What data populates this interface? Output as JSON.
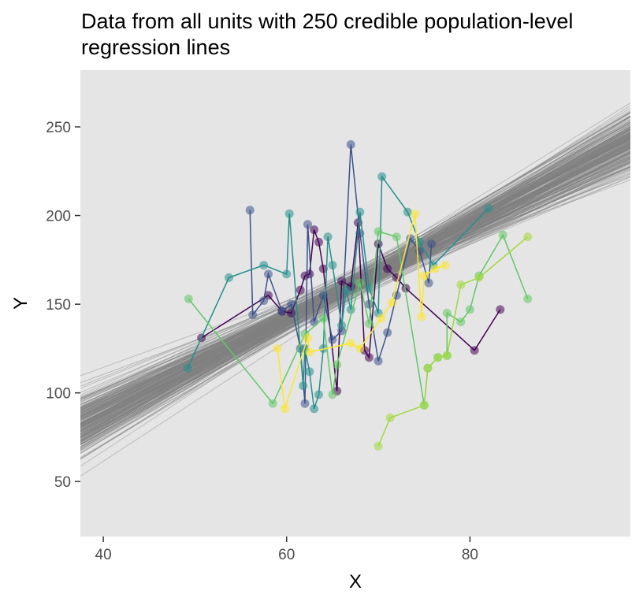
{
  "chart_data": {
    "type": "scatter",
    "title": [
      "Data from all units with 250 credible population-level",
      "regression lines"
    ],
    "xlabel": "X",
    "ylabel": "Y",
    "xlim": [
      37.5,
      97.5
    ],
    "ylim": [
      19,
      282
    ],
    "xticks": [
      40,
      60,
      80
    ],
    "yticks": [
      50,
      100,
      150,
      200,
      250
    ],
    "grid": false,
    "panel_background": "#e5e5e5",
    "legend": "none",
    "regression_lines": {
      "count": 250,
      "color": "#808080",
      "intercept_range": [
        -57,
        40
      ],
      "slope_range": [
        1.88,
        3.45
      ],
      "pivot_x": 68,
      "pivot_y": 163
    },
    "point_opacity": 0.55,
    "series": [
      {
        "color": "#440154",
        "points": [
          [
            50.7,
            131
          ],
          [
            58,
            155
          ],
          [
            59.5,
            146
          ],
          [
            60.5,
            145
          ],
          [
            61.5,
            158
          ],
          [
            62,
            166
          ],
          [
            62.5,
            167
          ],
          [
            63,
            192
          ],
          [
            63.5,
            185
          ],
          [
            64,
            170
          ],
          [
            65.5,
            101
          ],
          [
            66,
            163
          ],
          [
            67,
            160
          ],
          [
            67.8,
            196
          ],
          [
            68.5,
            124
          ],
          [
            69,
            120
          ],
          [
            70,
            184
          ],
          [
            71,
            170
          ],
          [
            72,
            165
          ],
          [
            73,
            159
          ],
          [
            80.5,
            124
          ],
          [
            83.3,
            147
          ]
        ]
      },
      {
        "color": "#3b528b",
        "points": [
          [
            56,
            203
          ],
          [
            56.3,
            144
          ],
          [
            57.5,
            152
          ],
          [
            58,
            167
          ],
          [
            59.5,
            146
          ],
          [
            60.5,
            150
          ],
          [
            61.5,
            125
          ],
          [
            62,
            94
          ],
          [
            62.3,
            195
          ],
          [
            63,
            140
          ],
          [
            64,
            155
          ],
          [
            65,
            130
          ],
          [
            66,
            135
          ],
          [
            67,
            240
          ],
          [
            68,
            190
          ],
          [
            69,
            150
          ],
          [
            70,
            118
          ],
          [
            71,
            134
          ],
          [
            72,
            155
          ],
          [
            73.5,
            187
          ],
          [
            74.5,
            180
          ],
          [
            75.5,
            162
          ],
          [
            75.8,
            184
          ]
        ]
      },
      {
        "color": "#21908c",
        "points": [
          [
            49.2,
            114
          ],
          [
            53.7,
            165
          ],
          [
            57.5,
            172
          ],
          [
            60,
            167
          ],
          [
            60.3,
            201
          ],
          [
            61.8,
            104
          ],
          [
            62,
            125
          ],
          [
            62.5,
            112
          ],
          [
            63,
            91
          ],
          [
            63.5,
            99
          ],
          [
            64,
            125
          ],
          [
            64.5,
            188
          ],
          [
            65,
            172
          ],
          [
            66,
            138
          ],
          [
            66.5,
            158
          ],
          [
            67,
            147
          ],
          [
            68,
            202
          ],
          [
            69,
            159
          ],
          [
            70,
            145
          ],
          [
            70.4,
            222
          ],
          [
            73.2,
            202
          ],
          [
            74.5,
            185
          ],
          [
            76,
            172
          ],
          [
            82,
            204
          ]
        ]
      },
      {
        "color": "#5ec962",
        "points": [
          [
            49.3,
            153
          ],
          [
            58.5,
            94
          ],
          [
            62,
            133
          ],
          [
            64,
            142
          ],
          [
            65,
            99
          ],
          [
            65.5,
            116
          ],
          [
            68,
            162
          ],
          [
            69,
            139
          ],
          [
            70,
            191
          ],
          [
            72,
            188
          ],
          [
            75,
            93
          ],
          [
            75.4,
            114
          ],
          [
            76.5,
            120
          ],
          [
            77.5,
            121
          ],
          [
            77.5,
            145
          ],
          [
            79,
            140
          ],
          [
            80,
            147
          ],
          [
            81,
            166
          ],
          [
            83.6,
            189
          ],
          [
            86.3,
            153
          ]
        ]
      },
      {
        "color": "#a0da39",
        "points": [
          [
            70,
            70
          ],
          [
            71.3,
            86
          ],
          [
            75,
            93
          ],
          [
            75.4,
            114
          ],
          [
            76.5,
            120
          ],
          [
            77.5,
            121
          ],
          [
            79,
            161
          ],
          [
            81,
            165
          ],
          [
            86.3,
            188
          ]
        ]
      },
      {
        "color": "#fde725",
        "points": [
          [
            59,
            125
          ],
          [
            59.8,
            91
          ],
          [
            62.3,
            131
          ],
          [
            62.5,
            123
          ],
          [
            67,
            128
          ],
          [
            68,
            125
          ],
          [
            70.3,
            142
          ],
          [
            71.5,
            151
          ],
          [
            74,
            201
          ],
          [
            74.7,
            143
          ],
          [
            75,
            166
          ],
          [
            76.2,
            170
          ],
          [
            77.3,
            172
          ]
        ]
      }
    ]
  }
}
